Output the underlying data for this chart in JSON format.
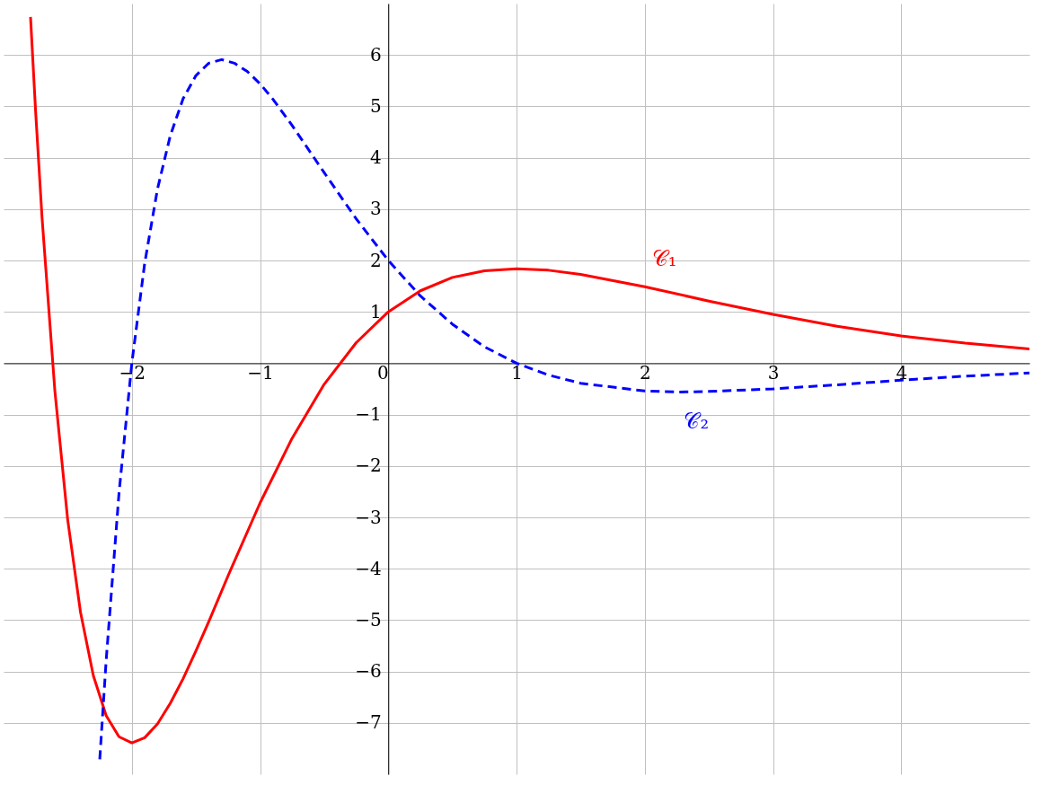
{
  "chart_data": {
    "type": "line",
    "xlim": [
      -3,
      5
    ],
    "ylim": [
      -8,
      7
    ],
    "xticks": [
      {
        "value": -2,
        "label": "−2"
      },
      {
        "value": -1,
        "label": "−1"
      },
      0,
      1,
      2,
      3,
      4
    ],
    "yticks": [
      {
        "value": -7,
        "label": "−7"
      },
      {
        "value": -6,
        "label": "−6"
      },
      {
        "value": -5,
        "label": "−5"
      },
      {
        "value": -4,
        "label": "−4"
      },
      {
        "value": -3,
        "label": "−3"
      },
      {
        "value": -2,
        "label": "−2"
      },
      {
        "value": -1,
        "label": "−1"
      },
      1,
      2,
      3,
      4,
      5,
      6
    ],
    "grid": true,
    "marker": "none",
    "series": [
      {
        "name": "𝒞₁",
        "color": "#ff0000",
        "line_style": "solid",
        "x": [
          -2.79,
          -2.75,
          -2.7,
          -2.6,
          -2.5,
          -2.4,
          -2.3,
          -2.2,
          -2.1,
          -2,
          -1.9,
          -1.8,
          -1.7,
          -1.6,
          -1.5,
          -1.4,
          -1.25,
          -1,
          -0.75,
          -0.5,
          -0.25,
          0,
          0.25,
          0.5,
          0.75,
          1,
          1.25,
          1.5,
          2,
          2.5,
          3,
          3.5,
          4,
          4.5,
          5
        ],
        "values": [
          6.74,
          4.89,
          2.83,
          -0.54,
          -3.05,
          -4.85,
          -6.08,
          -6.86,
          -7.27,
          -7.39,
          -7.29,
          -7.02,
          -6.62,
          -6.14,
          -5.6,
          -5.03,
          -4.14,
          -2.72,
          -1.46,
          -0.41,
          0.4,
          1,
          1.41,
          1.67,
          1.8,
          1.84,
          1.81,
          1.73,
          1.49,
          1.21,
          0.95,
          0.72,
          0.53,
          0.39,
          0.28
        ]
      },
      {
        "name": "𝒞₂",
        "color": "#0000ff",
        "line_style": "dashed",
        "x": [
          -2.25,
          -2.2,
          -2.1,
          -2,
          -1.9,
          -1.8,
          -1.7,
          -1.6,
          -1.5,
          -1.4,
          -1.3,
          -1.2,
          -1.1,
          -1,
          -0.9,
          -0.75,
          -0.5,
          -0.25,
          0,
          0.25,
          0.5,
          0.75,
          1,
          1.25,
          1.5,
          2,
          2.25,
          2.5,
          3,
          3.5,
          4,
          4.5,
          5
        ],
        "values": [
          -7.71,
          -5.78,
          -2.53,
          0,
          1.94,
          3.39,
          4.43,
          5.15,
          5.6,
          5.84,
          5.91,
          5.84,
          5.68,
          5.44,
          5.14,
          4.63,
          3.71,
          2.81,
          2,
          1.31,
          0.76,
          0.32,
          0,
          -0.23,
          -0.39,
          -0.54,
          -0.56,
          -0.55,
          -0.5,
          -0.42,
          -0.33,
          -0.25,
          -0.19
        ]
      }
    ]
  }
}
